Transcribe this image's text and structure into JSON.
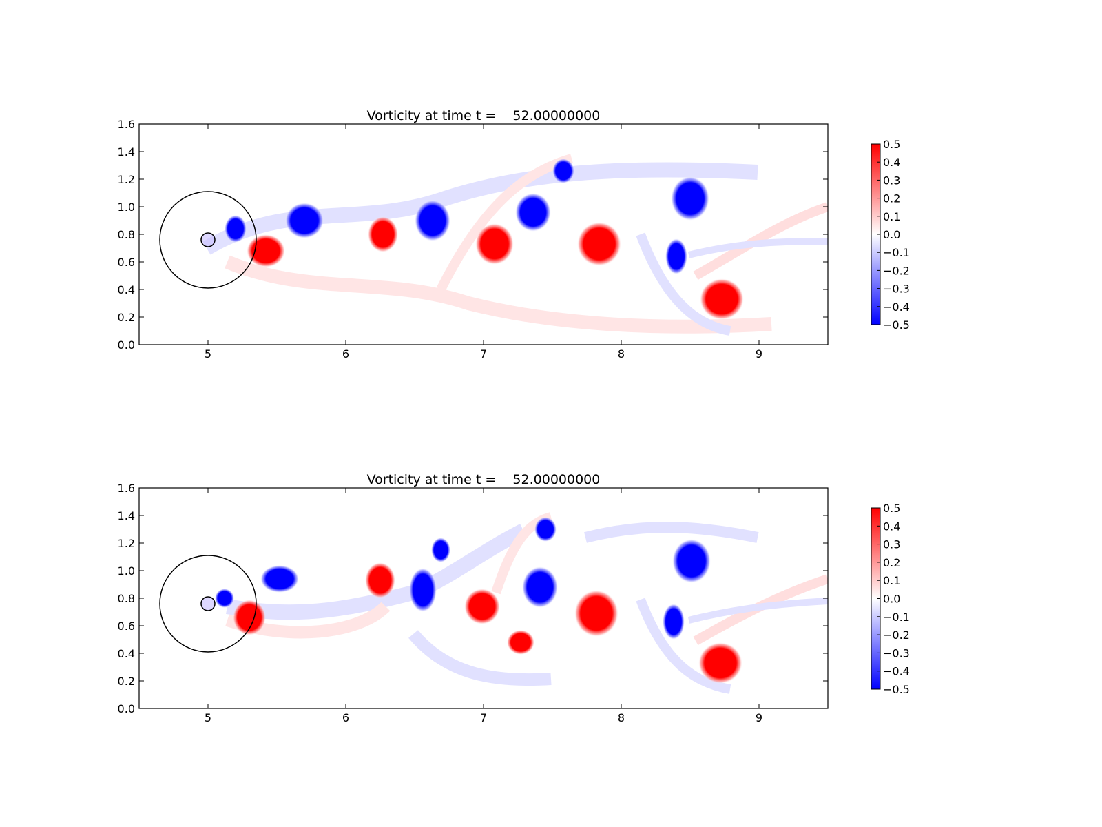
{
  "chart_data": [
    {
      "type": "heatmap",
      "title": "Vorticity at time t =    52.00000000",
      "xlim": [
        4.5,
        9.5
      ],
      "ylim": [
        0.0,
        1.6
      ],
      "xticks": [
        "5",
        "6",
        "7",
        "8",
        "9"
      ],
      "yticks": [
        "0.0",
        "0.2",
        "0.4",
        "0.6",
        "0.8",
        "1.0",
        "1.2",
        "1.4",
        "1.6"
      ],
      "colorbar": {
        "range": [
          -0.5,
          0.5
        ],
        "ticks": [
          "0.5",
          "0.4",
          "0.3",
          "0.2",
          "0.1",
          "0.0",
          "−0.1",
          "−0.2",
          "−0.3",
          "−0.4",
          "−0.5"
        ],
        "colors": {
          "neg": "#0000ff",
          "zero": "#ffffff",
          "pos": "#ff0000"
        }
      },
      "circles": [
        {
          "cx": 5.0,
          "cy": 0.76,
          "r": 0.35
        },
        {
          "cx": 5.0,
          "cy": 0.76,
          "r": 0.05
        }
      ],
      "vortices": [
        {
          "x": 5.2,
          "y": 0.84,
          "rx": 0.08,
          "ry": 0.1,
          "w": -0.5
        },
        {
          "x": 5.42,
          "y": 0.68,
          "rx": 0.14,
          "ry": 0.12,
          "w": 0.5
        },
        {
          "x": 5.7,
          "y": 0.9,
          "rx": 0.14,
          "ry": 0.13,
          "w": -0.5
        },
        {
          "x": 6.27,
          "y": 0.8,
          "rx": 0.11,
          "ry": 0.13,
          "w": 0.5
        },
        {
          "x": 6.63,
          "y": 0.9,
          "rx": 0.13,
          "ry": 0.15,
          "w": -0.5
        },
        {
          "x": 7.08,
          "y": 0.73,
          "rx": 0.14,
          "ry": 0.15,
          "w": 0.5
        },
        {
          "x": 7.36,
          "y": 0.96,
          "rx": 0.13,
          "ry": 0.14,
          "w": -0.5
        },
        {
          "x": 7.58,
          "y": 1.26,
          "rx": 0.08,
          "ry": 0.09,
          "w": -0.5
        },
        {
          "x": 7.84,
          "y": 0.73,
          "rx": 0.16,
          "ry": 0.16,
          "w": 0.5
        },
        {
          "x": 8.5,
          "y": 1.06,
          "rx": 0.14,
          "ry": 0.16,
          "w": -0.5
        },
        {
          "x": 8.4,
          "y": 0.64,
          "rx": 0.08,
          "ry": 0.13,
          "w": -0.5
        },
        {
          "x": 8.73,
          "y": 0.33,
          "rx": 0.16,
          "ry": 0.15,
          "w": 0.5
        }
      ]
    },
    {
      "type": "heatmap",
      "title": "Vorticity at time t =    52.00000000",
      "xlim": [
        4.5,
        9.5
      ],
      "ylim": [
        0.0,
        1.6
      ],
      "xticks": [
        "5",
        "6",
        "7",
        "8",
        "9"
      ],
      "yticks": [
        "0.0",
        "0.2",
        "0.4",
        "0.6",
        "0.8",
        "1.0",
        "1.2",
        "1.4",
        "1.6"
      ],
      "colorbar": {
        "range": [
          -0.5,
          0.5
        ],
        "ticks": [
          "0.5",
          "0.4",
          "0.3",
          "0.2",
          "0.1",
          "0.0",
          "−0.1",
          "−0.2",
          "−0.3",
          "−0.4",
          "−0.5"
        ],
        "colors": {
          "neg": "#0000ff",
          "zero": "#ffffff",
          "pos": "#ff0000"
        }
      },
      "circles": [
        {
          "cx": 5.0,
          "cy": 0.76,
          "r": 0.35
        },
        {
          "cx": 5.0,
          "cy": 0.76,
          "r": 0.05
        }
      ],
      "vortices": [
        {
          "x": 5.12,
          "y": 0.8,
          "rx": 0.07,
          "ry": 0.07,
          "w": -0.5
        },
        {
          "x": 5.3,
          "y": 0.66,
          "rx": 0.12,
          "ry": 0.13,
          "w": 0.5
        },
        {
          "x": 5.52,
          "y": 0.94,
          "rx": 0.14,
          "ry": 0.1,
          "w": -0.5
        },
        {
          "x": 6.25,
          "y": 0.93,
          "rx": 0.11,
          "ry": 0.13,
          "w": 0.5
        },
        {
          "x": 6.56,
          "y": 0.86,
          "rx": 0.1,
          "ry": 0.16,
          "w": -0.5
        },
        {
          "x": 6.69,
          "y": 1.15,
          "rx": 0.07,
          "ry": 0.09,
          "w": -0.5
        },
        {
          "x": 6.99,
          "y": 0.74,
          "rx": 0.13,
          "ry": 0.13,
          "w": 0.5
        },
        {
          "x": 7.27,
          "y": 0.48,
          "rx": 0.1,
          "ry": 0.09,
          "w": 0.5
        },
        {
          "x": 7.41,
          "y": 0.88,
          "rx": 0.13,
          "ry": 0.15,
          "w": -0.5
        },
        {
          "x": 7.45,
          "y": 1.3,
          "rx": 0.08,
          "ry": 0.09,
          "w": -0.5
        },
        {
          "x": 7.82,
          "y": 0.69,
          "rx": 0.16,
          "ry": 0.17,
          "w": 0.5
        },
        {
          "x": 8.51,
          "y": 1.07,
          "rx": 0.14,
          "ry": 0.16,
          "w": -0.5
        },
        {
          "x": 8.38,
          "y": 0.63,
          "rx": 0.08,
          "ry": 0.13,
          "w": -0.5
        },
        {
          "x": 8.72,
          "y": 0.33,
          "rx": 0.16,
          "ry": 0.15,
          "w": 0.5
        }
      ]
    }
  ]
}
